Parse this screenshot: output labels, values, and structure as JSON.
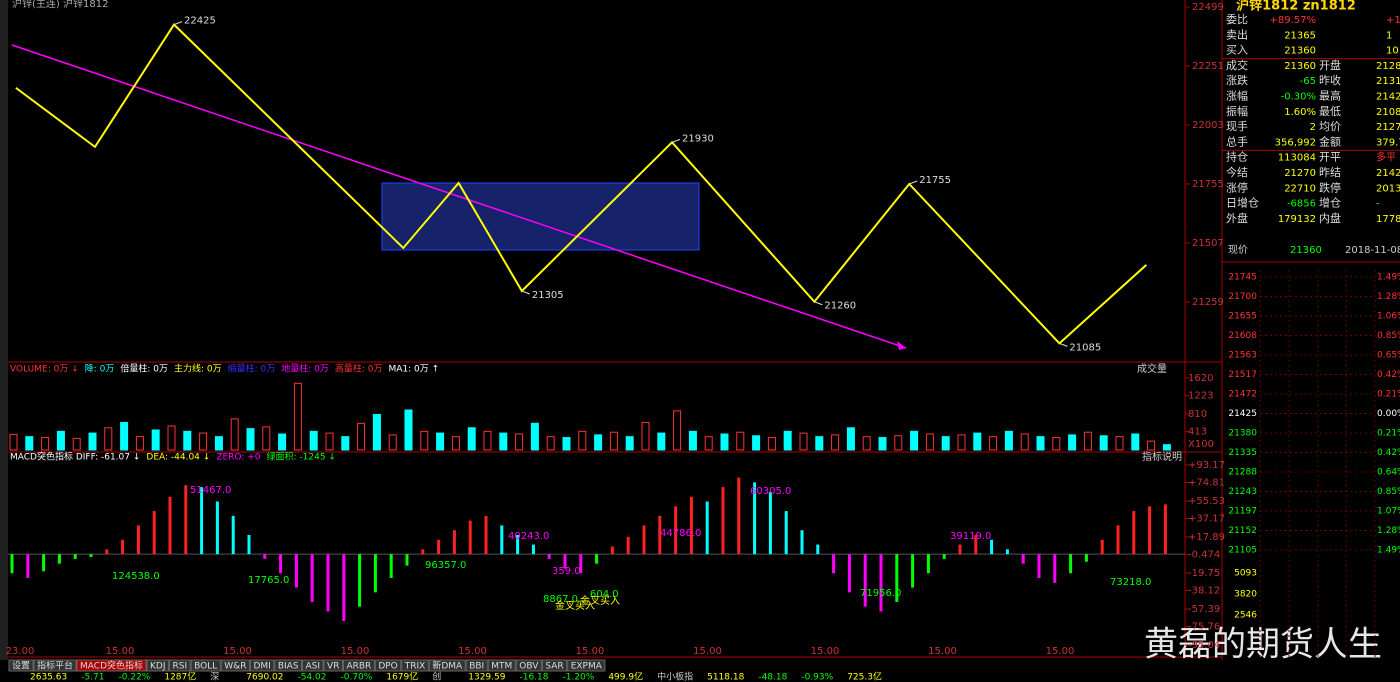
{
  "main_chart": {
    "header": "沪锌(主连) 沪锌1812",
    "xlim": [
      0,
      148
    ],
    "ylim": [
      21015,
      22499
    ],
    "yticks": [
      22499,
      22251,
      22003,
      21755,
      21507,
      21259
    ],
    "zigzag": [
      {
        "bar": 1,
        "value": 22159
      },
      {
        "bar": 11,
        "value": 21911
      },
      {
        "bar": 21,
        "value": 22425,
        "labeled": true
      },
      {
        "bar": 50,
        "value": 21486
      },
      {
        "bar": 57,
        "value": 21759
      },
      {
        "bar": 65,
        "value": 21305,
        "labeled": true
      },
      {
        "bar": 84,
        "value": 21930,
        "labeled": true
      },
      {
        "bar": 102,
        "value": 21260,
        "labeled": true
      },
      {
        "bar": 114,
        "value": 21755,
        "labeled": true
      },
      {
        "bar": 133,
        "value": 21085,
        "labeled": true
      },
      {
        "bar": 144,
        "value": 21415
      }
    ],
    "zigzag_color": "#ffff00",
    "trend_color": "#ff00ff",
    "box_color": "#1e2d8c"
  },
  "volume": {
    "legend": [
      "VOLUME: 0万 ↓",
      "降: 0万",
      "倍量柱: 0万",
      "主力线: 0万",
      "缩量柱: 0万",
      "地量柱: 0万",
      "高量柱: 0万",
      "MA1: 0万 ↑"
    ],
    "button": "成交量",
    "unit": "X100",
    "ylim": [
      0,
      1687
    ],
    "yticks": [
      1620,
      1223,
      810,
      413
    ],
    "values": [
      350,
      300,
      280,
      420,
      260,
      380,
      500,
      620,
      300,
      450,
      540,
      420,
      380,
      300,
      700,
      480,
      520,
      360,
      1500,
      420,
      380,
      300,
      600,
      800,
      340,
      900,
      420,
      380,
      300,
      500,
      420,
      380,
      360,
      600,
      300,
      280,
      420,
      340,
      400,
      300,
      620,
      380,
      880,
      420,
      300,
      360,
      400,
      320,
      280,
      420,
      380,
      300,
      340,
      500,
      300,
      280,
      320,
      420,
      360,
      300,
      340,
      380,
      300,
      420,
      360,
      300,
      280,
      340,
      400,
      320,
      300,
      360,
      200,
      120
    ]
  },
  "macd": {
    "legend": [
      "MACD突色指标 DIFF: -61.07 ↓",
      "DEA: -44.04 ↓",
      "ZERO: +0",
      "绿面积: -1245 ↓"
    ],
    "button": "指标说明",
    "ylim": [
      -95.04,
      93.17
    ],
    "yticks": [
      {
        "value": 93.17,
        "label": "+93.17"
      },
      {
        "value": 74.81,
        "label": "+74.81"
      },
      {
        "value": 55.53,
        "label": "+55.53"
      },
      {
        "value": 37.17,
        "label": "+37.17"
      },
      {
        "value": 17.89,
        "label": "+17.89"
      },
      -0.474,
      -19.75,
      -38.12,
      -57.39,
      -75.76,
      -95.04
    ],
    "histogram": [
      -20,
      -25,
      -18,
      -10,
      -5,
      -3,
      5,
      15,
      30,
      45,
      60,
      72,
      70,
      55,
      40,
      20,
      -5,
      -20,
      -35,
      -50,
      -60,
      -70,
      -55,
      -40,
      -25,
      -12,
      5,
      15,
      25,
      35,
      40,
      30,
      20,
      10,
      -5,
      -15,
      -20,
      -10,
      8,
      18,
      30,
      40,
      50,
      60,
      55,
      70,
      80,
      75,
      65,
      45,
      25,
      10,
      -20,
      -40,
      -55,
      -60,
      -50,
      -35,
      -20,
      -5,
      10,
      20,
      15,
      5,
      -10,
      -25,
      -30,
      -20,
      -8,
      15,
      30,
      45,
      50,
      52
    ],
    "annotations": [
      "51467.0",
      "40243.0",
      "44786.0",
      "60305.0",
      "39119.0",
      "124538.0",
      "17765.0",
      "96357.0",
      "8867.0",
      "604.0",
      "359.0",
      "71956.0",
      "73218.0",
      "金叉买入",
      "金叉买入"
    ],
    "time_labels": [
      "23.00",
      "15.00",
      "15.00",
      "15.00",
      "15.00",
      "15.00",
      "15.00",
      "15.00",
      "15.00",
      "15.00"
    ]
  },
  "tabs": [
    "设置",
    "指标平台",
    "MACD突色指标",
    "KDJ",
    "RSI",
    "BOLL",
    "W&R",
    "DMI",
    "BIAS",
    "ASI",
    "VR",
    "ARBR",
    "DPO",
    "TRIX",
    "新DMA",
    "BBI",
    "MTM",
    "OBV",
    "SAR",
    "EXPMA"
  ],
  "status_bar": [
    "2635.63",
    "-5.71",
    "-0.22%",
    "1287亿",
    "深",
    "7690.02",
    "-54.02",
    "-0.70%",
    "1679亿",
    "创",
    "1329.59",
    "-16.18",
    "-1.20%",
    "499.9亿",
    "中小板指",
    "5118.18",
    "-48.18",
    "-0.93%",
    "725.3亿"
  ],
  "quote_panel": {
    "title": "沪锌1812 zn1812",
    "rows": [
      [
        "委比",
        "+89.57%",
        "+10"
      ],
      [
        "卖出",
        "21365",
        "1"
      ],
      [
        "买入",
        "21360",
        "10"
      ],
      [
        "成交",
        "21360",
        "开盘",
        "2128"
      ],
      [
        "涨跌",
        "-65",
        "昨收",
        "2131"
      ],
      [
        "涨幅",
        "-0.30%",
        "最高",
        "2142"
      ],
      [
        "振幅",
        "1.60%",
        "最低",
        "2108"
      ],
      [
        "现手",
        "2",
        "均价",
        "2127"
      ],
      [
        "总手",
        "356,992",
        "金额",
        "379.71"
      ],
      [
        "持仓",
        "113084",
        "开平",
        "多平"
      ],
      [
        "今结",
        "21270",
        "昨结",
        "2142"
      ],
      [
        "涨停",
        "22710",
        "跌停",
        "2013"
      ],
      [
        "日增仓",
        "-6856",
        "增仓",
        "-"
      ],
      [
        "外盘",
        "179132",
        "内盘",
        "17786"
      ]
    ],
    "price_row": [
      "现价",
      "21360",
      "2018-11-08,"
    ],
    "intraday_prices": [
      "21745",
      "21700",
      "21655",
      "21608",
      "21563",
      "21517",
      "21472",
      "21425",
      "21380",
      "21335",
      "21288",
      "21243",
      "21197",
      "21152",
      "21105"
    ],
    "intraday_pct": [
      "1.49%",
      "1.28%",
      "1.06%",
      "0.85%",
      "0.65%",
      "0.42%",
      "0.21%",
      "0.00%",
      "0.21%",
      "0.42%",
      "0.64%",
      "0.85%",
      "1.07%",
      "1.28%",
      "1.49%"
    ],
    "intraday_volume": [
      "5093",
      "3820",
      "2546"
    ]
  },
  "watermark": "黄磊的期货人生"
}
